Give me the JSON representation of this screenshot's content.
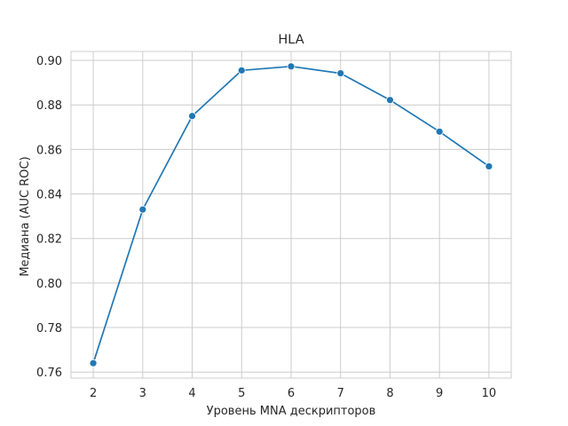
{
  "chart_data": {
    "type": "line",
    "title": "HLA",
    "xlabel": "Уровень MNA дескрипторов",
    "ylabel": "Медиана (AUC ROC)",
    "x": [
      2,
      3,
      4,
      5,
      6,
      7,
      8,
      9,
      10
    ],
    "series": [
      {
        "values": [
          0.764,
          0.833,
          0.875,
          0.8955,
          0.8973,
          0.8942,
          0.8822,
          0.868,
          0.8524
        ]
      }
    ],
    "xticks": [
      2,
      3,
      4,
      5,
      6,
      7,
      8,
      9,
      10
    ],
    "xtick_labels": [
      "2",
      "3",
      "4",
      "5",
      "6",
      "7",
      "8",
      "9",
      "10"
    ],
    "yticks": [
      0.76,
      0.78,
      0.8,
      0.82,
      0.84,
      0.86,
      0.88,
      0.9
    ],
    "ytick_labels": [
      "0.76",
      "0.78",
      "0.80",
      "0.82",
      "0.84",
      "0.86",
      "0.88",
      "0.90"
    ],
    "xlim": [
      1.55,
      10.45
    ],
    "ylim": [
      0.7573,
      0.904
    ],
    "grid": true,
    "line_color": "#1f77b4",
    "grid_color": "#cccccc"
  }
}
